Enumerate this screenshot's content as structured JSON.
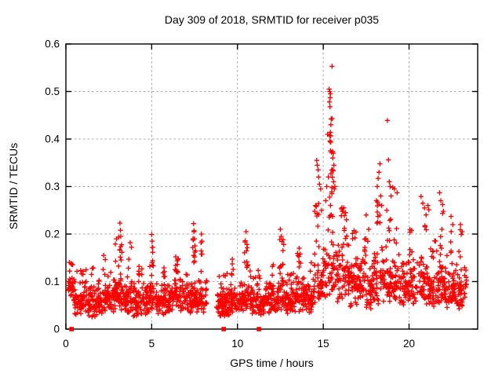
{
  "window": {
    "background": "#ffffff"
  },
  "chart_data": {
    "type": "scatter",
    "title": "Day 309 of 2018, SRMTID for receiver p035",
    "xlabel": "GPS time / hours",
    "ylabel": "SRMTID / TECUs",
    "xlim": [
      0,
      24
    ],
    "ylim": [
      0,
      0.6
    ],
    "xticks": {
      "values": [
        0,
        5,
        10,
        15,
        20
      ],
      "labels": [
        "0",
        "5",
        "10",
        "15",
        "20"
      ]
    },
    "yticks": {
      "values": [
        0,
        0.1,
        0.2,
        0.3,
        0.4,
        0.5,
        0.6
      ],
      "labels": [
        "0",
        "0.1",
        "0.2",
        "0.3",
        "0.4",
        "0.5",
        "0.6"
      ]
    },
    "grid": {
      "show": true,
      "style": "dashed",
      "color": "#a8a8a8",
      "at_major_ticks": true
    },
    "box": {
      "mirrored_inward_ticks": true,
      "color": "#000000"
    },
    "legend": {
      "show": false
    },
    "series": [
      {
        "name": "SRMTID",
        "marker": "plus",
        "color": "#ff0000",
        "data_gaps": [
          [
            0.0,
            0.15
          ],
          [
            8.25,
            8.75
          ],
          [
            23.35,
            24.0
          ]
        ],
        "outlier_points": [
          [
            2.2,
            0.155
          ],
          [
            2.95,
            0.19
          ],
          [
            3.15,
            0.223
          ],
          [
            3.18,
            0.208
          ],
          [
            3.2,
            0.195
          ],
          [
            3.75,
            0.182
          ],
          [
            5.0,
            0.199
          ],
          [
            5.03,
            0.185
          ],
          [
            5.06,
            0.172
          ],
          [
            6.4,
            0.152
          ],
          [
            6.55,
            0.148
          ],
          [
            7.44,
            0.222
          ],
          [
            7.46,
            0.205
          ],
          [
            7.49,
            0.19
          ],
          [
            7.52,
            0.175
          ],
          [
            7.9,
            0.2
          ],
          [
            7.93,
            0.185
          ],
          [
            9.7,
            0.147
          ],
          [
            10.45,
            0.186
          ],
          [
            10.5,
            0.205
          ],
          [
            10.55,
            0.178
          ],
          [
            12.5,
            0.21
          ],
          [
            12.55,
            0.195
          ],
          [
            12.6,
            0.184
          ],
          [
            12.7,
            0.178
          ],
          [
            13.6,
            0.17
          ],
          [
            13.65,
            0.158
          ],
          [
            14.5,
            0.248
          ],
          [
            14.55,
            0.26
          ],
          [
            14.62,
            0.355
          ],
          [
            14.65,
            0.345
          ],
          [
            14.7,
            0.335
          ],
          [
            14.73,
            0.32
          ],
          [
            14.78,
            0.305
          ],
          [
            14.85,
            0.295
          ],
          [
            14.9,
            0.25
          ],
          [
            15.15,
            0.27
          ],
          [
            15.2,
            0.3
          ],
          [
            15.25,
            0.41
          ],
          [
            15.3,
            0.32
          ],
          [
            15.34,
            0.505
          ],
          [
            15.36,
            0.478
          ],
          [
            15.38,
            0.5
          ],
          [
            15.39,
            0.468
          ],
          [
            15.4,
            0.487
          ],
          [
            15.42,
            0.495
          ],
          [
            15.44,
            0.43
          ],
          [
            15.46,
            0.442
          ],
          [
            15.48,
            0.372
          ],
          [
            15.5,
            0.285
          ],
          [
            15.51,
            0.553
          ],
          [
            15.52,
            0.443
          ],
          [
            15.55,
            0.36
          ],
          [
            15.58,
            0.333
          ],
          [
            15.59,
            0.37
          ],
          [
            15.6,
            0.31
          ],
          [
            15.62,
            0.345
          ],
          [
            15.65,
            0.295
          ],
          [
            15.68,
            0.3
          ],
          [
            16.2,
            0.255
          ],
          [
            16.3,
            0.245
          ],
          [
            16.35,
            0.23
          ],
          [
            17.5,
            0.24
          ],
          [
            17.65,
            0.21
          ],
          [
            18.1,
            0.27
          ],
          [
            18.15,
            0.3
          ],
          [
            18.2,
            0.317
          ],
          [
            18.25,
            0.33
          ],
          [
            18.3,
            0.348
          ],
          [
            18.35,
            0.28
          ],
          [
            18.4,
            0.26
          ],
          [
            18.7,
            0.25
          ],
          [
            18.74,
            0.439
          ],
          [
            18.8,
            0.356
          ],
          [
            18.85,
            0.31
          ],
          [
            18.9,
            0.3
          ],
          [
            18.95,
            0.28
          ],
          [
            19.05,
            0.298
          ],
          [
            19.15,
            0.295
          ],
          [
            19.3,
            0.287
          ],
          [
            20.7,
            0.279
          ],
          [
            20.8,
            0.265
          ],
          [
            20.9,
            0.255
          ],
          [
            21.1,
            0.26
          ],
          [
            21.15,
            0.251
          ],
          [
            21.78,
            0.287
          ],
          [
            21.85,
            0.27
          ],
          [
            21.95,
            0.262
          ],
          [
            22.0,
            0.248
          ],
          [
            22.45,
            0.237
          ],
          [
            22.55,
            0.22
          ],
          [
            23.0,
            0.22
          ],
          [
            23.1,
            0.205
          ]
        ],
        "noise_segments": {
          "columns": [
            "t_start",
            "t_end",
            "n_points",
            "band_low",
            "band_high",
            "p_tail",
            "tail_max",
            "spike_center"
          ],
          "rows": [
            [
              0.15,
              0.45,
              30,
              0.06,
              0.135,
              0.08,
              0.148,
              null
            ],
            [
              0.45,
              1.2,
              70,
              0.03,
              0.115,
              0.08,
              0.132,
              null
            ],
            [
              1.2,
              2.1,
              80,
              0.025,
              0.105,
              0.07,
              0.135,
              1.55
            ],
            [
              2.1,
              2.45,
              32,
              0.03,
              0.11,
              0.12,
              0.15,
              2.2
            ],
            [
              2.45,
              2.8,
              30,
              0.03,
              0.1,
              0.08,
              0.125,
              null
            ],
            [
              2.8,
              3.05,
              28,
              0.04,
              0.12,
              0.2,
              0.185,
              2.95
            ],
            [
              3.05,
              3.3,
              32,
              0.04,
              0.13,
              0.25,
              0.215,
              3.17
            ],
            [
              3.3,
              3.9,
              55,
              0.03,
              0.12,
              0.12,
              0.178,
              3.75
            ],
            [
              3.9,
              4.85,
              85,
              0.025,
              0.11,
              0.07,
              0.138,
              4.35
            ],
            [
              4.85,
              5.15,
              32,
              0.04,
              0.13,
              0.22,
              0.195,
              5.0
            ],
            [
              5.15,
              6.1,
              85,
              0.03,
              0.11,
              0.07,
              0.14,
              5.7
            ],
            [
              6.1,
              6.9,
              70,
              0.035,
              0.12,
              0.1,
              0.15,
              6.45
            ],
            [
              6.9,
              7.35,
              40,
              0.03,
              0.11,
              0.07,
              0.128,
              null
            ],
            [
              7.35,
              7.6,
              32,
              0.04,
              0.13,
              0.25,
              0.215,
              7.46
            ],
            [
              7.6,
              8.22,
              55,
              0.03,
              0.12,
              0.12,
              0.19,
              7.92
            ],
            [
              8.78,
              9.6,
              85,
              0.025,
              0.1,
              0.05,
              0.118,
              null
            ],
            [
              9.6,
              10.35,
              70,
              0.03,
              0.105,
              0.08,
              0.14,
              9.75
            ],
            [
              10.35,
              10.7,
              32,
              0.04,
              0.12,
              0.25,
              0.19,
              10.5
            ],
            [
              10.7,
              11.6,
              80,
              0.03,
              0.105,
              0.06,
              0.125,
              null
            ],
            [
              11.6,
              12.35,
              70,
              0.03,
              0.11,
              0.07,
              0.138,
              12.0
            ],
            [
              12.35,
              12.85,
              45,
              0.04,
              0.12,
              0.22,
              0.195,
              12.55
            ],
            [
              12.85,
              13.4,
              50,
              0.03,
              0.11,
              0.07,
              0.135,
              null
            ],
            [
              13.4,
              13.9,
              45,
              0.035,
              0.12,
              0.12,
              0.163,
              13.6
            ],
            [
              13.9,
              14.45,
              50,
              0.03,
              0.12,
              0.08,
              0.15,
              14.2
            ],
            [
              14.45,
              15.0,
              50,
              0.05,
              0.17,
              0.2,
              0.3,
              14.7
            ],
            [
              15.0,
              15.75,
              70,
              0.06,
              0.23,
              0.25,
              0.42,
              15.45
            ],
            [
              15.75,
              16.5,
              70,
              0.05,
              0.2,
              0.15,
              0.26,
              16.15
            ],
            [
              16.5,
              17.3,
              75,
              0.04,
              0.165,
              0.1,
              0.215,
              16.8
            ],
            [
              17.3,
              17.9,
              55,
              0.04,
              0.155,
              0.08,
              0.2,
              17.5
            ],
            [
              17.9,
              18.45,
              50,
              0.05,
              0.18,
              0.15,
              0.27,
              18.2
            ],
            [
              18.45,
              19.1,
              55,
              0.05,
              0.18,
              0.15,
              0.26,
              18.85
            ],
            [
              19.1,
              19.8,
              60,
              0.05,
              0.165,
              0.1,
              0.24,
              19.2
            ],
            [
              19.8,
              20.45,
              55,
              0.04,
              0.155,
              0.08,
              0.21,
              20.1
            ],
            [
              20.45,
              21.2,
              60,
              0.05,
              0.165,
              0.12,
              0.245,
              20.9
            ],
            [
              21.2,
              21.7,
              45,
              0.04,
              0.15,
              0.08,
              0.21,
              null
            ],
            [
              21.7,
              22.1,
              40,
              0.05,
              0.17,
              0.15,
              0.26,
              21.85
            ],
            [
              22.1,
              22.75,
              55,
              0.04,
              0.16,
              0.1,
              0.225,
              22.5
            ],
            [
              22.75,
              23.35,
              50,
              0.04,
              0.15,
              0.1,
              0.21,
              23.0
            ]
          ]
        }
      },
      {
        "name": "zero-flags",
        "marker": "filled-square",
        "color": "#ff0000",
        "points": [
          [
            0.33,
            0
          ],
          [
            9.2,
            0
          ],
          [
            11.25,
            0
          ]
        ]
      }
    ],
    "render_hints": {
      "seed": 309,
      "marker_half_size": 3.2,
      "square_size": 5.6
    }
  }
}
